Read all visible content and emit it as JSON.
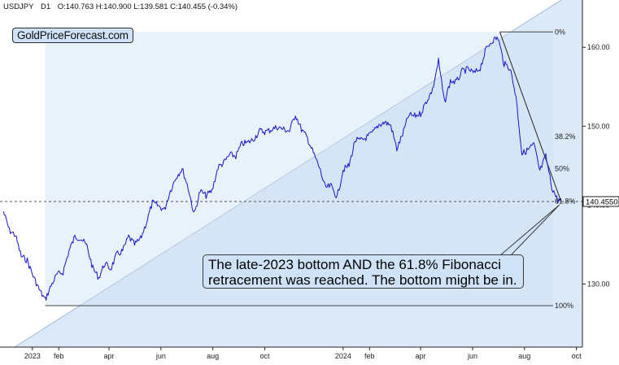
{
  "header": {
    "symbol": "USDJPY",
    "timeframe": "D1",
    "ohlc_text": "O:140.763  H:140.900  L:139.581  C:140.455  (-0.34%)"
  },
  "brand": "GoldPriceForecast.com",
  "annotation": "The late-2023 bottom AND the 61.8% Fibonacci retracement was reached. The bottom might be in.",
  "colors": {
    "price_line": "#1515cc",
    "channel_fill": "#dce9f8",
    "label_bg": "#cfe2f7",
    "axis": "#222222"
  },
  "chart_data": {
    "type": "line",
    "title": "USDJPY D1",
    "xlabel": "",
    "ylabel": "",
    "ylim": [
      122.0,
      166.0
    ],
    "x_ticks": [
      {
        "date": "2023-01-01",
        "label": "2023"
      },
      {
        "date": "2023-02-01",
        "label": "feb"
      },
      {
        "date": "2023-04-01",
        "label": "apr"
      },
      {
        "date": "2023-06-01",
        "label": "jun"
      },
      {
        "date": "2023-08-01",
        "label": "aug"
      },
      {
        "date": "2023-10-01",
        "label": "oct"
      },
      {
        "date": "2024-01-01",
        "label": "2024"
      },
      {
        "date": "2024-02-01",
        "label": "feb"
      },
      {
        "date": "2024-04-01",
        "label": "apr"
      },
      {
        "date": "2024-06-01",
        "label": "jun"
      },
      {
        "date": "2024-08-01",
        "label": "aug"
      },
      {
        "date": "2024-10-01",
        "label": "oct"
      }
    ],
    "y_ticks": [
      {
        "value": 160.0,
        "label": "160.00"
      },
      {
        "value": 150.0,
        "label": "150.00"
      },
      {
        "value": 140.0,
        "label": "140.00"
      },
      {
        "value": 130.0,
        "label": "130.00"
      }
    ],
    "current_price": {
      "value": 140.455,
      "label": "140.4550"
    },
    "fibonacci": {
      "high": {
        "date": "2024-07-03",
        "value": 161.95
      },
      "low": {
        "date": "2023-01-16",
        "value": 127.25
      },
      "levels": [
        {
          "ratio": 0.0,
          "label": "0%"
        },
        {
          "ratio": 0.382,
          "label": "38.2%"
        },
        {
          "ratio": 0.5,
          "label": "50%"
        },
        {
          "ratio": 0.618,
          "label": "61.8%"
        },
        {
          "ratio": 1.0,
          "label": "100%"
        }
      ]
    },
    "series": [
      {
        "values": [
          [
            "2022-11-28",
            139.2
          ],
          [
            "2022-12-05",
            136.8
          ],
          [
            "2022-12-12",
            136.2
          ],
          [
            "2022-12-19",
            133.5
          ],
          [
            "2022-12-26",
            133.0
          ],
          [
            "2023-01-02",
            131.0
          ],
          [
            "2023-01-09",
            129.3
          ],
          [
            "2023-01-16",
            128.0
          ],
          [
            "2023-01-23",
            129.8
          ],
          [
            "2023-01-30",
            131.2
          ],
          [
            "2023-02-06",
            131.5
          ],
          [
            "2023-02-13",
            134.2
          ],
          [
            "2023-02-20",
            136.0
          ],
          [
            "2023-02-27",
            135.8
          ],
          [
            "2023-03-06",
            134.8
          ],
          [
            "2023-03-13",
            132.0
          ],
          [
            "2023-03-20",
            130.8
          ],
          [
            "2023-03-27",
            132.6
          ],
          [
            "2023-04-03",
            131.9
          ],
          [
            "2023-04-10",
            133.7
          ],
          [
            "2023-04-17",
            134.2
          ],
          [
            "2023-04-24",
            136.0
          ],
          [
            "2023-05-01",
            135.0
          ],
          [
            "2023-05-08",
            135.7
          ],
          [
            "2023-05-15",
            137.8
          ],
          [
            "2023-05-22",
            140.3
          ],
          [
            "2023-05-29",
            139.9
          ],
          [
            "2023-06-05",
            139.4
          ],
          [
            "2023-06-12",
            141.8
          ],
          [
            "2023-06-19",
            143.6
          ],
          [
            "2023-06-26",
            144.6
          ],
          [
            "2023-07-03",
            142.2
          ],
          [
            "2023-07-10",
            138.8
          ],
          [
            "2023-07-17",
            141.8
          ],
          [
            "2023-07-24",
            141.2
          ],
          [
            "2023-07-31",
            141.8
          ],
          [
            "2023-08-07",
            144.8
          ],
          [
            "2023-08-14",
            145.4
          ],
          [
            "2023-08-21",
            146.4
          ],
          [
            "2023-08-28",
            146.2
          ],
          [
            "2023-09-04",
            147.8
          ],
          [
            "2023-09-11",
            147.9
          ],
          [
            "2023-09-18",
            148.4
          ],
          [
            "2023-09-25",
            149.4
          ],
          [
            "2023-10-02",
            149.3
          ],
          [
            "2023-10-09",
            149.6
          ],
          [
            "2023-10-16",
            149.9
          ],
          [
            "2023-10-23",
            149.6
          ],
          [
            "2023-10-30",
            149.4
          ],
          [
            "2023-11-06",
            151.5
          ],
          [
            "2023-11-13",
            149.6
          ],
          [
            "2023-11-20",
            148.5
          ],
          [
            "2023-11-27",
            146.6
          ],
          [
            "2023-12-04",
            144.8
          ],
          [
            "2023-12-11",
            142.2
          ],
          [
            "2023-12-18",
            142.4
          ],
          [
            "2023-12-25",
            141.0
          ],
          [
            "2024-01-01",
            144.5
          ],
          [
            "2024-01-08",
            145.0
          ],
          [
            "2024-01-15",
            148.2
          ],
          [
            "2024-01-22",
            148.2
          ],
          [
            "2024-01-29",
            148.6
          ],
          [
            "2024-02-05",
            149.2
          ],
          [
            "2024-02-12",
            150.2
          ],
          [
            "2024-02-19",
            150.5
          ],
          [
            "2024-02-26",
            150.1
          ],
          [
            "2024-03-04",
            147.1
          ],
          [
            "2024-03-11",
            149.0
          ],
          [
            "2024-03-18",
            151.4
          ],
          [
            "2024-03-25",
            151.3
          ],
          [
            "2024-04-01",
            151.6
          ],
          [
            "2024-04-08",
            153.2
          ],
          [
            "2024-04-15",
            154.6
          ],
          [
            "2024-04-22",
            158.3
          ],
          [
            "2024-04-29",
            153.0
          ],
          [
            "2024-05-06",
            155.7
          ],
          [
            "2024-05-13",
            155.6
          ],
          [
            "2024-05-20",
            157.0
          ],
          [
            "2024-05-27",
            157.2
          ],
          [
            "2024-06-03",
            156.7
          ],
          [
            "2024-06-10",
            157.4
          ],
          [
            "2024-06-17",
            159.8
          ],
          [
            "2024-06-24",
            160.9
          ],
          [
            "2024-07-01",
            161.2
          ],
          [
            "2024-07-08",
            157.9
          ],
          [
            "2024-07-15",
            157.4
          ],
          [
            "2024-07-22",
            153.8
          ],
          [
            "2024-07-29",
            146.5
          ],
          [
            "2024-08-05",
            147.0
          ],
          [
            "2024-08-12",
            147.7
          ],
          [
            "2024-08-19",
            144.3
          ],
          [
            "2024-08-26",
            146.2
          ],
          [
            "2024-09-02",
            142.3
          ],
          [
            "2024-09-09",
            140.6
          ],
          [
            "2024-09-13",
            140.455
          ]
        ]
      }
    ]
  }
}
